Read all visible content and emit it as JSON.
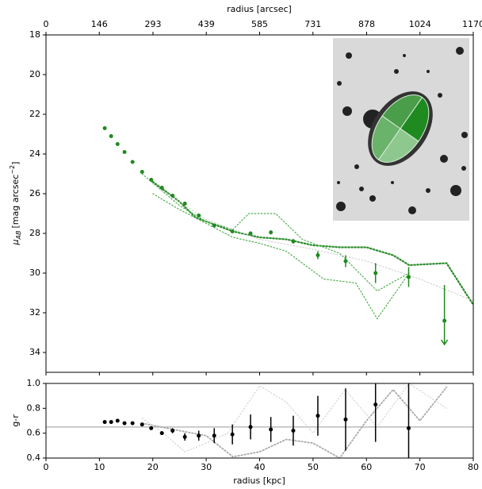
{
  "chart_data": [
    {
      "type": "errorbar",
      "x2label": "radius [arcsec]",
      "x2lim": [
        0,
        1170
      ],
      "x2ticks": [
        0,
        146,
        293,
        439,
        585,
        731,
        878,
        1024,
        1170
      ],
      "xlim": [
        0,
        80
      ],
      "xticks": [
        0,
        10,
        20,
        30,
        40,
        50,
        60,
        70,
        80
      ],
      "ylabel": {
        "symbol": "μ",
        "subscript": "AB",
        "unit": "[mag arcsec",
        "exponent": "−2",
        "close": "]"
      },
      "ylim": [
        18,
        35
      ],
      "invert_y": true,
      "yticks": [
        18,
        20,
        22,
        24,
        26,
        28,
        30,
        32,
        34
      ],
      "points": {
        "color": "#1f8a1f",
        "x": [
          11.0,
          12.2,
          13.4,
          14.7,
          16.2,
          18.0,
          19.7,
          21.7,
          23.7,
          26.0,
          28.6,
          31.5,
          34.9,
          38.3,
          42.1,
          46.3,
          50.9,
          56.1,
          61.7,
          67.9,
          74.6
        ],
        "values": [
          22.7,
          23.1,
          23.5,
          23.9,
          24.4,
          24.9,
          25.3,
          25.7,
          26.1,
          26.5,
          27.1,
          27.6,
          27.9,
          28.0,
          27.95,
          28.4,
          29.1,
          29.4,
          30.0,
          30.2,
          32.4
        ],
        "errors": [
          0.02,
          0.02,
          0.02,
          0.02,
          0.02,
          0.03,
          0.03,
          0.03,
          0.04,
          0.05,
          0.05,
          0.06,
          0.07,
          0.08,
          0.1,
          0.12,
          0.2,
          0.3,
          0.5,
          0.5,
          0
        ],
        "upper_limit": [
          false,
          false,
          false,
          false,
          false,
          false,
          false,
          false,
          false,
          false,
          false,
          false,
          false,
          false,
          false,
          false,
          false,
          false,
          false,
          false,
          true
        ]
      },
      "lines": [
        {
          "color": "#2a8c2a",
          "width": 2.2,
          "x": [
            20,
            25,
            28,
            32,
            35,
            40,
            45,
            50,
            55,
            60,
            65,
            68,
            75,
            80
          ],
          "values": [
            25.4,
            26.4,
            27.2,
            27.6,
            27.9,
            28.2,
            28.3,
            28.6,
            28.7,
            28.7,
            29.1,
            29.6,
            29.5,
            31.6
          ]
        },
        {
          "color": "#4caf4c",
          "width": 1.2,
          "x": [
            18,
            25,
            30,
            35,
            38,
            43,
            48,
            55,
            62,
            68
          ],
          "values": [
            25.0,
            26.6,
            27.4,
            27.8,
            27.0,
            27.0,
            28.3,
            29.0,
            30.9,
            30.0
          ]
        },
        {
          "color": "#4caf4c",
          "width": 1.2,
          "x": [
            20,
            25,
            30,
            35,
            40,
            45,
            52,
            58,
            62,
            68
          ],
          "values": [
            26.0,
            26.8,
            27.5,
            28.2,
            28.5,
            28.9,
            30.3,
            30.5,
            32.3,
            30.0
          ]
        },
        {
          "color": "#c8c8c8",
          "width": 1,
          "x": [
            20,
            30,
            40,
            50,
            60,
            70,
            80
          ],
          "values": [
            25.5,
            27.3,
            28.3,
            28.8,
            29.4,
            30.3,
            31.4
          ]
        }
      ]
    },
    {
      "type": "errorbar",
      "xlabel": "radius [kpc]",
      "xlim": [
        0,
        80
      ],
      "xticks": [
        0,
        10,
        20,
        30,
        40,
        50,
        60,
        70,
        80
      ],
      "ylabel": "g-r",
      "ylim": [
        0.4,
        1.0
      ],
      "yticks": [
        0.4,
        0.6,
        0.8,
        {
          "value": 1,
          "label": "1.0"
        }
      ],
      "reference_line": {
        "value": 0.65,
        "color": "#bbbbbb"
      },
      "points": {
        "color": "#000000",
        "x": [
          11.0,
          12.2,
          13.4,
          14.7,
          16.2,
          18.0,
          19.7,
          21.7,
          23.7,
          26.0,
          28.6,
          31.5,
          34.9,
          38.3,
          42.1,
          46.3,
          50.9,
          56.1,
          61.7,
          67.9
        ],
        "values": [
          0.69,
          0.69,
          0.7,
          0.68,
          0.68,
          0.67,
          0.64,
          0.6,
          0.62,
          0.57,
          0.58,
          0.58,
          0.59,
          0.65,
          0.63,
          0.62,
          0.74,
          0.71,
          0.83,
          0.64
        ],
        "errors": [
          0.01,
          0.01,
          0.01,
          0.01,
          0.01,
          0.01,
          0.01,
          0.015,
          0.02,
          0.03,
          0.04,
          0.06,
          0.08,
          0.1,
          0.1,
          0.12,
          0.16,
          0.25,
          0.3,
          0.4
        ]
      },
      "lines": [
        {
          "color": "#aaaaaa",
          "width": 1.8,
          "x": [
            18,
            25,
            30,
            35,
            40,
            45,
            50,
            55,
            60,
            65,
            70,
            75
          ],
          "values": [
            0.68,
            0.62,
            0.58,
            0.41,
            0.45,
            0.55,
            0.52,
            0.4,
            0.7,
            0.95,
            0.7,
            0.97
          ]
        },
        {
          "color": "#cccccc",
          "width": 1,
          "x": [
            18,
            22,
            26,
            30,
            34,
            40,
            45,
            50,
            56,
            62,
            68,
            75
          ],
          "values": [
            0.72,
            0.6,
            0.45,
            0.52,
            0.6,
            0.98,
            0.85,
            0.6,
            0.95,
            0.65,
            1.0,
            0.8
          ]
        }
      ]
    }
  ]
}
